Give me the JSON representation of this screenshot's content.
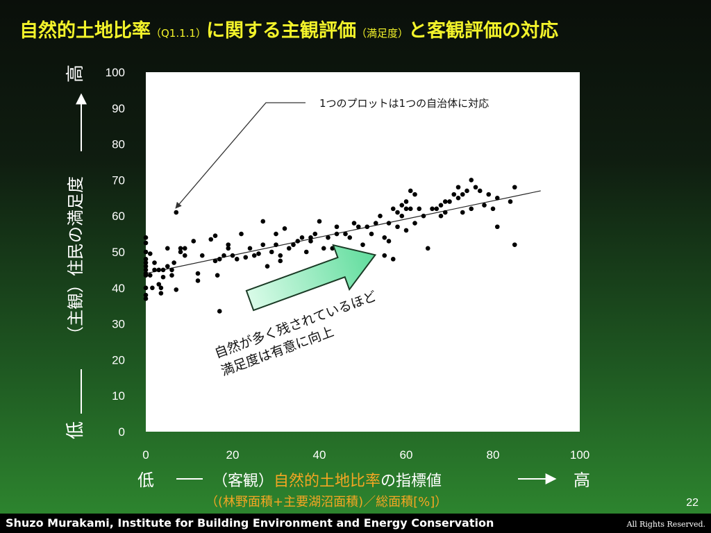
{
  "slide": {
    "title_main": "自然的土地比率",
    "title_paren1": "（Q1.1.1）",
    "title_mid": "に関する主観評価",
    "title_paren2": "（満足度）",
    "title_end": "と客観評価の対応",
    "page_number": "22",
    "author": "Shuzo Murakami,  Institute for Building Environment and Energy Conservation",
    "rights": "All Rights Reserved."
  },
  "x_axis": {
    "low": "低",
    "prefix": "（客観）",
    "highlight": "自然的土地比率",
    "suffix": "の指標値",
    "high": "高",
    "subtitle": "（(林野面積+主要湖沼面積)／総面積[%]）"
  },
  "y_axis": {
    "high": "高",
    "low": "低",
    "label": "（主観）住民の満足度"
  },
  "annotations": {
    "callout": "1つのプロットは1つの自治体に対応",
    "trend_note_line1": "自然が多く残されているほど",
    "trend_note_line2": "満足度は有意に向上"
  },
  "colors": {
    "title": "#f2f22a",
    "highlight": "#f5a623",
    "arrow_fill": "#86efbf",
    "plot_bg": "#ffffff"
  },
  "chart_data": {
    "type": "scatter",
    "xlim": [
      0,
      100
    ],
    "ylim": [
      0,
      100
    ],
    "xticks": [
      0,
      20,
      40,
      60,
      80,
      100
    ],
    "yticks": [
      0,
      10,
      20,
      30,
      40,
      50,
      60,
      70,
      80,
      90,
      100
    ],
    "grid": false,
    "trendline": {
      "x": [
        0,
        91
      ],
      "y": [
        44,
        67
      ]
    },
    "points": [
      [
        0,
        54
      ],
      [
        0,
        52.5
      ],
      [
        0,
        50
      ],
      [
        0,
        48
      ],
      [
        0,
        47
      ],
      [
        0,
        46
      ],
      [
        0,
        45
      ],
      [
        0,
        44
      ],
      [
        0,
        43.5
      ],
      [
        0,
        40
      ],
      [
        0,
        38
      ],
      [
        0,
        37
      ],
      [
        1,
        49.5
      ],
      [
        1,
        43.5
      ],
      [
        1.5,
        40
      ],
      [
        2,
        47
      ],
      [
        2,
        45
      ],
      [
        3,
        45
      ],
      [
        3,
        41
      ],
      [
        3.5,
        40
      ],
      [
        3.5,
        38.5
      ],
      [
        4,
        45
      ],
      [
        4,
        43
      ],
      [
        5,
        46
      ],
      [
        5,
        51
      ],
      [
        6,
        45
      ],
      [
        6,
        43.5
      ],
      [
        6.5,
        47
      ],
      [
        7,
        61
      ],
      [
        7,
        39.5
      ],
      [
        8,
        51
      ],
      [
        8,
        50
      ],
      [
        9,
        49
      ],
      [
        9,
        51
      ],
      [
        11,
        53
      ],
      [
        12,
        42
      ],
      [
        12,
        44
      ],
      [
        13,
        49
      ],
      [
        15,
        53.5
      ],
      [
        16,
        54.5
      ],
      [
        16,
        47.5
      ],
      [
        16.5,
        43.5
      ],
      [
        17,
        48
      ],
      [
        17,
        33.5
      ],
      [
        18,
        49
      ],
      [
        19,
        52
      ],
      [
        19,
        51
      ],
      [
        20,
        49
      ],
      [
        21,
        48
      ],
      [
        22,
        55
      ],
      [
        23,
        48.5
      ],
      [
        24,
        51
      ],
      [
        25,
        49
      ],
      [
        26,
        49.5
      ],
      [
        27,
        52
      ],
      [
        27,
        58.5
      ],
      [
        28,
        46
      ],
      [
        29,
        50
      ],
      [
        30,
        55
      ],
      [
        30,
        52
      ],
      [
        31,
        49
      ],
      [
        31,
        47.5
      ],
      [
        32,
        56.5
      ],
      [
        33,
        51
      ],
      [
        34,
        52
      ],
      [
        35,
        53
      ],
      [
        36,
        54
      ],
      [
        37,
        50
      ],
      [
        38,
        53
      ],
      [
        38,
        54
      ],
      [
        39,
        55
      ],
      [
        40,
        58.5
      ],
      [
        41,
        51
      ],
      [
        42,
        54
      ],
      [
        43,
        51
      ],
      [
        44,
        55
      ],
      [
        44,
        57
      ],
      [
        45,
        50.5
      ],
      [
        46,
        55
      ],
      [
        47,
        54
      ],
      [
        47,
        50
      ],
      [
        48,
        58
      ],
      [
        49,
        57
      ],
      [
        50,
        52
      ],
      [
        51,
        57
      ],
      [
        52,
        55
      ],
      [
        53,
        58
      ],
      [
        54,
        60
      ],
      [
        55,
        54
      ],
      [
        55,
        49
      ],
      [
        56,
        53
      ],
      [
        56,
        58
      ],
      [
        57,
        62
      ],
      [
        57,
        48
      ],
      [
        58,
        57
      ],
      [
        58,
        61
      ],
      [
        59,
        63
      ],
      [
        59,
        60
      ],
      [
        60,
        64
      ],
      [
        60,
        62
      ],
      [
        60,
        56
      ],
      [
        61,
        67
      ],
      [
        61,
        62
      ],
      [
        62,
        66
      ],
      [
        62,
        58
      ],
      [
        63,
        62
      ],
      [
        64,
        60
      ],
      [
        65,
        51
      ],
      [
        66,
        62
      ],
      [
        67,
        62
      ],
      [
        68,
        63
      ],
      [
        68,
        60
      ],
      [
        69,
        61
      ],
      [
        69,
        64
      ],
      [
        70,
        64
      ],
      [
        71,
        66
      ],
      [
        72,
        65
      ],
      [
        72,
        68
      ],
      [
        73,
        66
      ],
      [
        73,
        61
      ],
      [
        74,
        67
      ],
      [
        75,
        70
      ],
      [
        75,
        62
      ],
      [
        76,
        68
      ],
      [
        77,
        67
      ],
      [
        78,
        63
      ],
      [
        79,
        66
      ],
      [
        80,
        62
      ],
      [
        81,
        57
      ],
      [
        81,
        65
      ],
      [
        84,
        64
      ],
      [
        85,
        68
      ],
      [
        85,
        52
      ]
    ]
  }
}
